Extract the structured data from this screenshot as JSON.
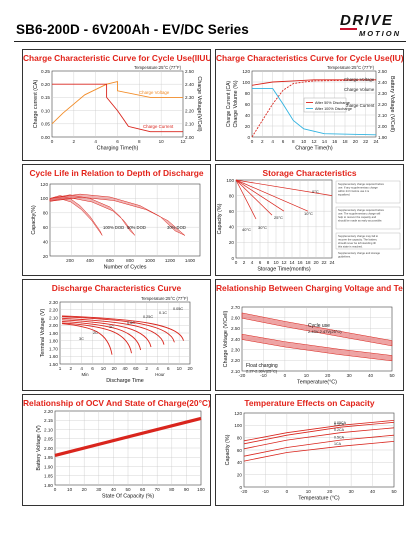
{
  "header": {
    "title": "SB6-200D - 6V200Ah - EV/DC Series",
    "logo_line1": "DRIVE",
    "logo_line2": "MOTION"
  },
  "colors": {
    "title_red": "#e2231a",
    "curve_orange": "#f28c28",
    "curve_red": "#d9251d",
    "curve_cyan": "#31b3e0",
    "band_red": "#e05a5a",
    "grid": "#c9c9c9"
  },
  "charts": {
    "iuu": {
      "title": "Charge Characteristic Curve for Cycle Use(IIUU)",
      "temp": "Temperature:25°C (77°F)",
      "ylabel_left": "Charge current (CA)",
      "ylabel_right": "Charge Voltage(V/Cell)",
      "xlabel": "Charging Time(h)",
      "series_labels": [
        "Charge Voltage",
        "Charge Current"
      ],
      "left_ticks": [
        "0.25",
        "0.20",
        "0.15",
        "0.10",
        "0.05",
        "0.00"
      ],
      "right_ticks": [
        "2.50",
        "2.40",
        "2.30",
        "2.20",
        "2.10",
        "2.00"
      ],
      "x_ticks": [
        "0",
        "2",
        "4",
        "6",
        "8",
        "10",
        "12"
      ]
    },
    "iu": {
      "title": "Charge Characteristics Curve for Cycle Use(IU)",
      "temp": "Temperature:25°C (77°F)",
      "ylabel_left": "Charge Volume (%)",
      "ylabel_left2": "Charge Current (CA)",
      "ylabel_right": "Battery Voltage (V/Cell)",
      "xlabel": "Charge Time(h)",
      "series_labels": [
        "Charge Voltage",
        "Charge Volume",
        "Charge Current"
      ],
      "legend": [
        "After 50% Discharge",
        "After 100% Discharge"
      ],
      "left_ticks": [
        "120",
        "100",
        "80",
        "60",
        "40",
        "20",
        "0"
      ],
      "left2_ticks": [
        "0.14",
        "0.12",
        "0.10",
        "0.08",
        "0.06",
        "0.04",
        "0.02",
        "0.00"
      ],
      "right_ticks": [
        "2.50",
        "2.40",
        "2.30",
        "2.20",
        "2.10",
        "2.00",
        "1.90"
      ],
      "x_ticks": [
        "0",
        "2",
        "4",
        "6",
        "8",
        "10",
        "12",
        "14",
        "16",
        "18",
        "20",
        "22",
        "24"
      ]
    },
    "cycle": {
      "title": "Cycle Life in Relation to Depth of Discharge",
      "ylabel": "Capacity(%)",
      "xlabel": "Number of Cycles",
      "y_ticks": [
        "120",
        "100",
        "80",
        "60",
        "40",
        "20"
      ],
      "x_ticks": [
        "200",
        "400",
        "600",
        "800",
        "1000",
        "1200",
        "1400"
      ],
      "dod_labels": [
        "100% DOD",
        "50% DOD",
        "30% DOD"
      ]
    },
    "storage": {
      "title": "Storage Characteristics",
      "ylabel": "Capacity (%)",
      "xlabel": "Storage Time(months)",
      "y_ticks": [
        "100",
        "80",
        "60",
        "40",
        "20",
        "0"
      ],
      "x_ticks": [
        "0",
        "2",
        "4",
        "6",
        "8",
        "10",
        "12",
        "14",
        "16",
        "18",
        "20",
        "22",
        "24"
      ],
      "temp_labels": [
        "0°C",
        "10°C",
        "25°C",
        "30°C",
        "40°C"
      ],
      "notes": [
        "Supplementary charge required before use. If any supplementary charge within 24 h before use it is equalized.",
        "Supplementary charge required before use. The supplementary charge will help to recover the capacity and should be made as early as possible.",
        "Supplementary charge may fail to recover the capacity. The battery should never be left standing till this state is reached.",
        "Supplementary charge and storage guidelines."
      ]
    },
    "discharge": {
      "title": "Discharge Characteristics Curve",
      "temp": "Temperature:25°C (77°F)",
      "ylabel": "Terminal Voltage (V)",
      "xlabel": "Discharge Time",
      "x_ticks": [
        "1",
        "2",
        "4",
        "6",
        "10",
        "20",
        "40",
        "60",
        "2",
        "4",
        "6",
        "10",
        "20"
      ],
      "x_units": [
        "Min",
        "Hour"
      ],
      "y_ticks": [
        "2.30",
        "2.20",
        "2.10",
        "2.00",
        "1.90",
        "1.80",
        "1.70",
        "1.60",
        "1.50"
      ],
      "rate_labels": [
        "0.05C",
        "0.1C",
        "0.25C",
        "0.6C",
        "1C",
        "2C",
        "3C"
      ]
    },
    "charging_vt": {
      "title": "Relationship Between Charging Voltage and Temperature",
      "ylabel": "Charge Voltage (V/Cell)",
      "xlabel": "Temperature(°C)",
      "band_labels": [
        "Cycle use",
        "2.43V-2.47V(25°C)",
        "Float charging",
        "2.27-2.30V(25°C)"
      ],
      "y_ticks": [
        "2.70",
        "2.60",
        "2.50",
        "2.40",
        "2.30",
        "2.20",
        "2.10"
      ],
      "x_ticks": [
        "-20",
        "-10",
        "0",
        "10",
        "20",
        "30",
        "40",
        "50"
      ]
    },
    "ocv": {
      "title": "Relationship of OCV And State of Charge(20°C)",
      "ylabel": "Battery Voltage (V)",
      "xlabel": "State Of Capacity (%)",
      "y_ticks": [
        "2.20",
        "2.15",
        "2.10",
        "2.05",
        "2.00",
        "1.95",
        "1.90",
        "1.85",
        "1.80"
      ],
      "x_ticks": [
        "0",
        "10",
        "20",
        "30",
        "40",
        "50",
        "60",
        "70",
        "80",
        "90",
        "100"
      ]
    },
    "temp_cap": {
      "title": "Temperature Effects on Capacity",
      "ylabel": "Capacity (%)",
      "xlabel": "Temperature (°C)",
      "y_ticks": [
        "120",
        "100",
        "80",
        "60",
        "40",
        "20",
        "0"
      ],
      "x_ticks": [
        "-20",
        "-10",
        "0",
        "10",
        "20",
        "30",
        "40",
        "50"
      ],
      "series_labels": [
        "0.05CA",
        "0.1CA",
        "0.2CA",
        "0.5CA",
        "1CA"
      ]
    }
  },
  "chart_data": [
    {
      "type": "line",
      "title": "Charge Characteristic Curve for Cycle Use(IIUU)",
      "xlabel": "Charging Time(h)",
      "ylabel": "Charge current (CA)",
      "ylabel_right": "Charge Voltage(V/Cell)",
      "xlim": [
        0,
        12
      ],
      "ylim": [
        0,
        0.25
      ],
      "ylim_right": [
        2.0,
        2.5
      ],
      "series": [
        {
          "name": "Charge Voltage",
          "axis": "right",
          "x": [
            0,
            1,
            3,
            5,
            6,
            6,
            9,
            12
          ],
          "y": [
            2.1,
            2.18,
            2.32,
            2.4,
            2.42,
            2.35,
            2.3,
            2.3
          ]
        },
        {
          "name": "Charge Current",
          "axis": "left",
          "x": [
            0,
            5,
            5,
            6,
            6.5,
            7,
            9,
            12
          ],
          "y": [
            0.2,
            0.2,
            0.15,
            0.1,
            0.07,
            0.04,
            0.02,
            0.02
          ]
        }
      ]
    },
    {
      "type": "line",
      "title": "Charge Characteristics Curve for Cycle Use(IU)",
      "xlabel": "Charge Time(h)",
      "ylabel": "Charge Volume (%)",
      "xlim": [
        0,
        24
      ],
      "ylim": [
        0,
        120
      ],
      "series": [
        {
          "name": "Charge Voltage",
          "x": [
            0,
            4,
            8,
            12,
            16,
            20,
            24
          ],
          "y": [
            94,
            100,
            102,
            104,
            104,
            104,
            104
          ]
        },
        {
          "name": "Charge Volume",
          "x": [
            0,
            2,
            4,
            6,
            8,
            10,
            12,
            24
          ],
          "y": [
            0,
            30,
            60,
            85,
            97,
            100,
            102,
            104
          ]
        },
        {
          "name": "Charge Current",
          "x": [
            0,
            4,
            6,
            8,
            10,
            14,
            24
          ],
          "y": [
            88,
            88,
            60,
            30,
            15,
            6,
            4
          ]
        }
      ]
    },
    {
      "type": "area",
      "title": "Cycle Life in Relation to Depth of Discharge",
      "xlabel": "Number of Cycles",
      "ylabel": "Capacity(%)",
      "xlim": [
        0,
        1500
      ],
      "ylim": [
        20,
        120
      ],
      "series": [
        {
          "name": "100% DOD",
          "x": [
            0,
            100,
            200,
            300,
            400,
            500
          ],
          "y": [
            100,
            104,
            100,
            90,
            75,
            55
          ]
        },
        {
          "name": "50% DOD",
          "x": [
            0,
            200,
            400,
            600,
            700,
            800
          ],
          "y": [
            100,
            105,
            100,
            88,
            75,
            55
          ]
        },
        {
          "name": "30% DOD",
          "x": [
            0,
            300,
            600,
            900,
            1100,
            1250
          ],
          "y": [
            100,
            106,
            102,
            90,
            75,
            55
          ]
        }
      ]
    },
    {
      "type": "line",
      "title": "Storage Characteristics",
      "xlabel": "Storage Time(months)",
      "ylabel": "Capacity (%)",
      "xlim": [
        0,
        24
      ],
      "ylim": [
        0,
        100
      ],
      "series": [
        {
          "name": "0°C",
          "x": [
            0,
            24
          ],
          "y": [
            100,
            80
          ]
        },
        {
          "name": "10°C",
          "x": [
            0,
            18
          ],
          "y": [
            100,
            60
          ]
        },
        {
          "name": "25°C",
          "x": [
            0,
            12
          ],
          "y": [
            100,
            60
          ]
        },
        {
          "name": "30°C",
          "x": [
            0,
            9
          ],
          "y": [
            100,
            55
          ]
        },
        {
          "name": "40°C",
          "x": [
            0,
            5
          ],
          "y": [
            100,
            50
          ]
        }
      ]
    },
    {
      "type": "line",
      "title": "Discharge Characteristics Curve",
      "xlabel": "Discharge Time",
      "ylabel": "Terminal Voltage (V)",
      "ylim": [
        1.5,
        2.3
      ],
      "series": [
        {
          "name": "3C",
          "x": [
            0,
            0.4
          ],
          "y": [
            2.02,
            1.62
          ]
        },
        {
          "name": "2C",
          "x": [
            0,
            0.55
          ],
          "y": [
            2.03,
            1.64
          ]
        },
        {
          "name": "1C",
          "x": [
            0,
            0.62
          ],
          "y": [
            2.05,
            1.68
          ]
        },
        {
          "name": "0.6C",
          "x": [
            0,
            0.7
          ],
          "y": [
            2.07,
            1.72
          ]
        },
        {
          "name": "0.25C",
          "x": [
            0,
            0.8
          ],
          "y": [
            2.09,
            1.75
          ]
        },
        {
          "name": "0.1C",
          "x": [
            0,
            0.88
          ],
          "y": [
            2.11,
            1.78
          ]
        },
        {
          "name": "0.05C",
          "x": [
            0,
            0.95
          ],
          "y": [
            2.12,
            1.8
          ]
        }
      ]
    },
    {
      "type": "area",
      "title": "Relationship Between Charging Voltage and Temperature",
      "xlabel": "Temperature(°C)",
      "ylabel": "Charge Voltage (V/Cell)",
      "xlim": [
        -20,
        50
      ],
      "ylim": [
        2.1,
        2.7
      ],
      "series": [
        {
          "name": "Cycle use",
          "x": [
            -20,
            0,
            25,
            50
          ],
          "y": [
            2.62,
            2.54,
            2.45,
            2.36
          ]
        },
        {
          "name": "Float charging",
          "x": [
            -20,
            0,
            25,
            50
          ],
          "y": [
            2.42,
            2.35,
            2.28,
            2.22
          ]
        }
      ]
    },
    {
      "type": "line",
      "title": "Relationship of OCV And State of Charge(20°C)",
      "xlabel": "State Of Capacity (%)",
      "ylabel": "Battery Voltage (V)",
      "xlim": [
        0,
        100
      ],
      "ylim": [
        1.8,
        2.2
      ],
      "series": [
        {
          "x": [
            0,
            100
          ],
          "y": [
            1.96,
            2.16
          ]
        }
      ]
    },
    {
      "type": "line",
      "title": "Temperature Effects on Capacity",
      "xlabel": "Temperature (°C)",
      "ylabel": "Capacity (%)",
      "xlim": [
        -20,
        50
      ],
      "ylim": [
        0,
        120
      ],
      "series": [
        {
          "name": "0.05CA",
          "x": [
            -20,
            0,
            25,
            50
          ],
          "y": [
            75,
            88,
            100,
            108
          ]
        },
        {
          "name": "0.1CA",
          "x": [
            -20,
            0,
            25,
            50
          ],
          "y": [
            70,
            84,
            97,
            105
          ]
        },
        {
          "name": "0.2CA",
          "x": [
            -20,
            0,
            25,
            50
          ],
          "y": [
            62,
            76,
            88,
            96
          ]
        },
        {
          "name": "0.5CA",
          "x": [
            -20,
            0,
            25,
            50
          ],
          "y": [
            50,
            64,
            76,
            84
          ]
        },
        {
          "name": "1CA",
          "x": [
            -20,
            0,
            25,
            50
          ],
          "y": [
            42,
            56,
            66,
            74
          ]
        }
      ]
    }
  ]
}
